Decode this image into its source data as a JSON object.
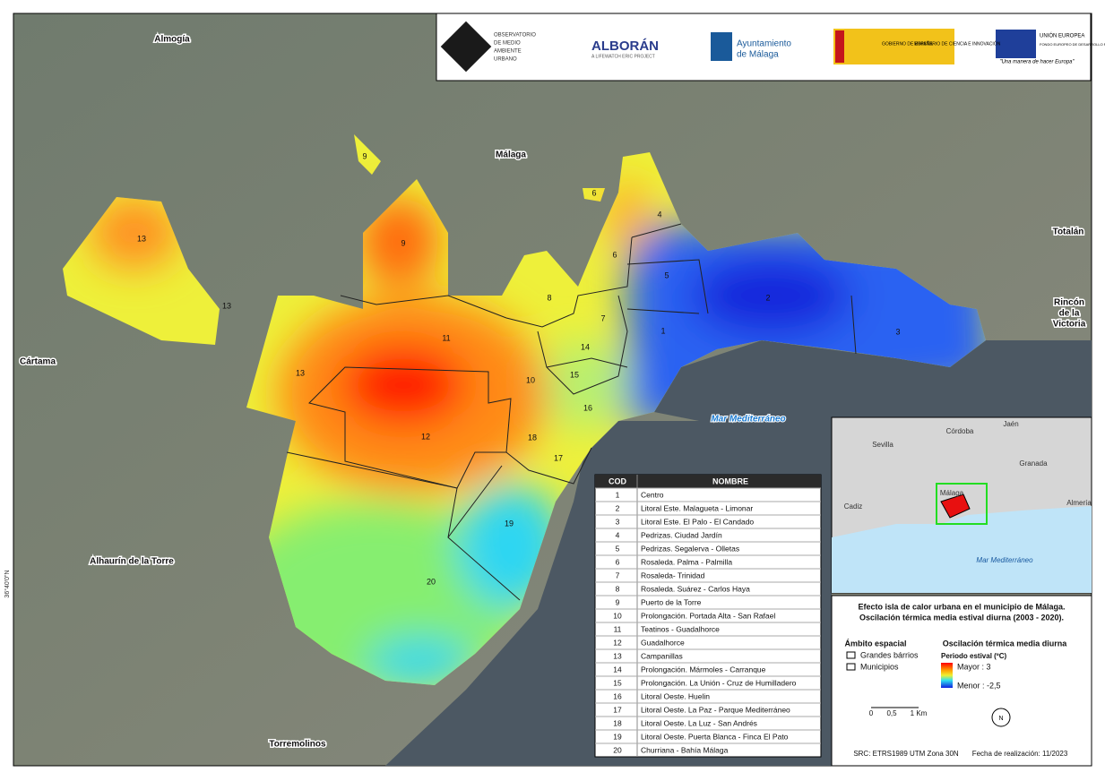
{
  "header": {
    "logos": [
      "OBSERVATORIO",
      "DE MEDIO",
      "AMBIENTE",
      "URBANO",
      "ALBORÁN",
      "A LIFEWATCH ERIC PROJECT",
      "Ayuntamiento",
      "de Málaga",
      "GOBIERNO DE ESPAÑA",
      "MINISTERIO DE CIENCIA E INNOVACIÓN",
      "UNIÓN EUROPEA",
      "FONDO EUROPEO DE DESARROLLO REGIONAL",
      "\"Una manera de hacer Europa\""
    ]
  },
  "map": {
    "places": [
      [
        "Almogía"
      ],
      [
        "Málaga"
      ],
      [
        "Totalán"
      ],
      [
        "Rincón",
        "de la",
        "Victoria"
      ],
      [
        "Cártama"
      ],
      [
        "Alhaurín de la Torre"
      ],
      [
        "Torremolinos"
      ]
    ],
    "sea": "Mar Mediterráneo",
    "coordinate": "36°40'0\"N",
    "districts": [
      "13",
      "9",
      "6",
      "4",
      "9",
      "6",
      "5",
      "8",
      "13",
      "2",
      "7",
      "1",
      "3",
      "11",
      "14",
      "13",
      "15",
      "10",
      "16",
      "12",
      "18",
      "17",
      "19",
      "20"
    ]
  },
  "table": {
    "columns": [
      "COD",
      "NOMBRE"
    ],
    "rows": [
      [
        1,
        "Centro"
      ],
      [
        2,
        "Litoral Este. Malagueta - Limonar"
      ],
      [
        3,
        "Litoral Este. El Palo - El Candado"
      ],
      [
        4,
        "Pedrizas. Ciudad Jardín"
      ],
      [
        5,
        "Pedrizas. Segalerva - Olletas"
      ],
      [
        6,
        "Rosaleda. Palma - Palmilla"
      ],
      [
        7,
        "Rosaleda- Trinidad"
      ],
      [
        8,
        "Rosaleda. Suárez - Carlos Haya"
      ],
      [
        9,
        "Puerto de la Torre"
      ],
      [
        10,
        "Prolongación. Portada Alta - San Rafael"
      ],
      [
        11,
        "Teatinos - Guadalhorce"
      ],
      [
        12,
        "Guadalhorce"
      ],
      [
        13,
        "Campanillas"
      ],
      [
        14,
        "Prolongación. Mármoles - Carranque"
      ],
      [
        15,
        "Prolongación. La Unión - Cruz de Humilladero"
      ],
      [
        16,
        "Litoral Oeste. Huelin"
      ],
      [
        17,
        "Litoral Oeste. La Paz - Parque Mediterráneo"
      ],
      [
        18,
        "Litoral Oeste. La Luz - San Andrés"
      ],
      [
        19,
        "Litoral Oeste. Puerta Blanca - Finca El Pato"
      ],
      [
        20,
        "Churriana - Bahía Málaga"
      ]
    ]
  },
  "inset": {
    "places": [
      "Córdoba",
      "Jaén",
      "Sevilla",
      "Granada",
      "Cadiz",
      "Málaga",
      "Almería"
    ],
    "sea": "Mar Mediterráneo"
  },
  "legend": {
    "title": [
      "Efecto isla de calor urbana en el municipio de Málaga.",
      "Oscilación térmica media estival diurna (2003 - 2020)."
    ],
    "scope_title": "Ámbito espacial",
    "scope_items": [
      "Grandes bárrios",
      "Municipios"
    ],
    "ramp_title": "Oscilación térmica media diurna",
    "ramp_subtitle": "Periodo estival (ºC)",
    "ramp_high": "Mayor : 3",
    "ramp_low": "Menor : -2,5",
    "scale": [
      "0",
      "0,5",
      "1 Km"
    ],
    "north": "N",
    "crs": "SRC: ETRS1989 UTM Zona 30N",
    "date": "Fecha de realización: 11/2023"
  }
}
